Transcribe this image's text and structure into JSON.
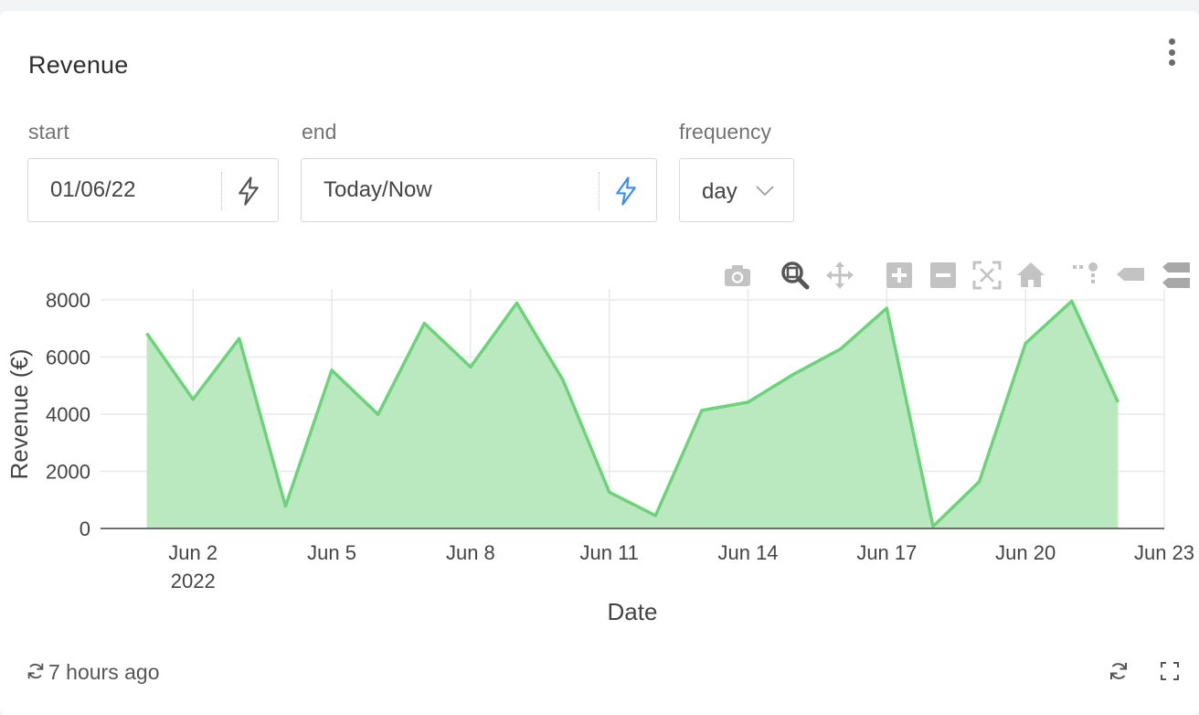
{
  "card": {
    "title": "Revenue",
    "menu_icon": "more-vertical-icon"
  },
  "filters": {
    "start": {
      "label": "start",
      "value": "01/06/22",
      "icon": "lightning-bolt-icon",
      "icon_color": "#555555"
    },
    "end": {
      "label": "end",
      "value": "Today/Now",
      "icon": "lightning-bolt-icon",
      "icon_color": "#3b8ff0"
    },
    "frequency": {
      "label": "frequency",
      "value": "day",
      "icon": "chevron-down-icon"
    }
  },
  "modebar": [
    {
      "name": "camera-icon",
      "title": "Download plot as a png",
      "active": false
    },
    {
      "name": "zoom-icon",
      "title": "Zoom",
      "active": true
    },
    {
      "name": "pan-icon",
      "title": "Pan",
      "active": false
    },
    {
      "name": "zoom-in-icon",
      "title": "Zoom in",
      "active": false
    },
    {
      "name": "zoom-out-icon",
      "title": "Zoom out",
      "active": false
    },
    {
      "name": "autoscale-icon",
      "title": "Autoscale",
      "active": false
    },
    {
      "name": "home-icon",
      "title": "Reset axes",
      "active": false
    },
    {
      "name": "spike-lines-icon",
      "title": "Toggle Spike Lines",
      "active": false
    },
    {
      "name": "hover-closest-icon",
      "title": "Show closest data on hover",
      "active": false
    },
    {
      "name": "hover-compare-icon",
      "title": "Compare data on hover",
      "active": false
    }
  ],
  "chart_data": {
    "type": "area",
    "title": "",
    "xlabel": "Date",
    "ylabel": "Revenue (€)",
    "x": [
      "2022-06-01",
      "2022-06-02",
      "2022-06-03",
      "2022-06-04",
      "2022-06-05",
      "2022-06-06",
      "2022-06-07",
      "2022-06-08",
      "2022-06-09",
      "2022-06-10",
      "2022-06-11",
      "2022-06-12",
      "2022-06-13",
      "2022-06-14",
      "2022-06-15",
      "2022-06-16",
      "2022-06-17",
      "2022-06-18",
      "2022-06-19",
      "2022-06-20",
      "2022-06-21",
      "2022-06-22"
    ],
    "values": [
      6830,
      4520,
      6650,
      780,
      5540,
      3990,
      7180,
      5650,
      7890,
      5190,
      1270,
      450,
      4130,
      4420,
      5410,
      6280,
      7710,
      70,
      1640,
      6480,
      7960,
      4420
    ],
    "ylim": [
      0,
      8000
    ],
    "yticks": [
      0,
      2000,
      4000,
      6000,
      8000
    ],
    "ytick_labels": [
      "0",
      "2000",
      "4000",
      "6000",
      "8000"
    ],
    "xlim": [
      "2022-05-31",
      "2022-06-23"
    ],
    "xticks": [
      "2022-06-02",
      "2022-06-05",
      "2022-06-08",
      "2022-06-11",
      "2022-06-14",
      "2022-06-17",
      "2022-06-20",
      "2022-06-23"
    ],
    "xtick_labels": [
      "Jun 2",
      "Jun 5",
      "Jun 8",
      "Jun 11",
      "Jun 14",
      "Jun 17",
      "Jun 20",
      "Jun 23"
    ],
    "xtick_sublabel": "2022",
    "grid": true,
    "line_color": "#6dd37a",
    "fill_color": "#b6e8bd",
    "legend": "none"
  },
  "footer": {
    "updated": "7 hours ago",
    "refresh_icon": "refresh-icon",
    "reload_icon": "reload-icon",
    "expand_icon": "fullscreen-icon"
  }
}
